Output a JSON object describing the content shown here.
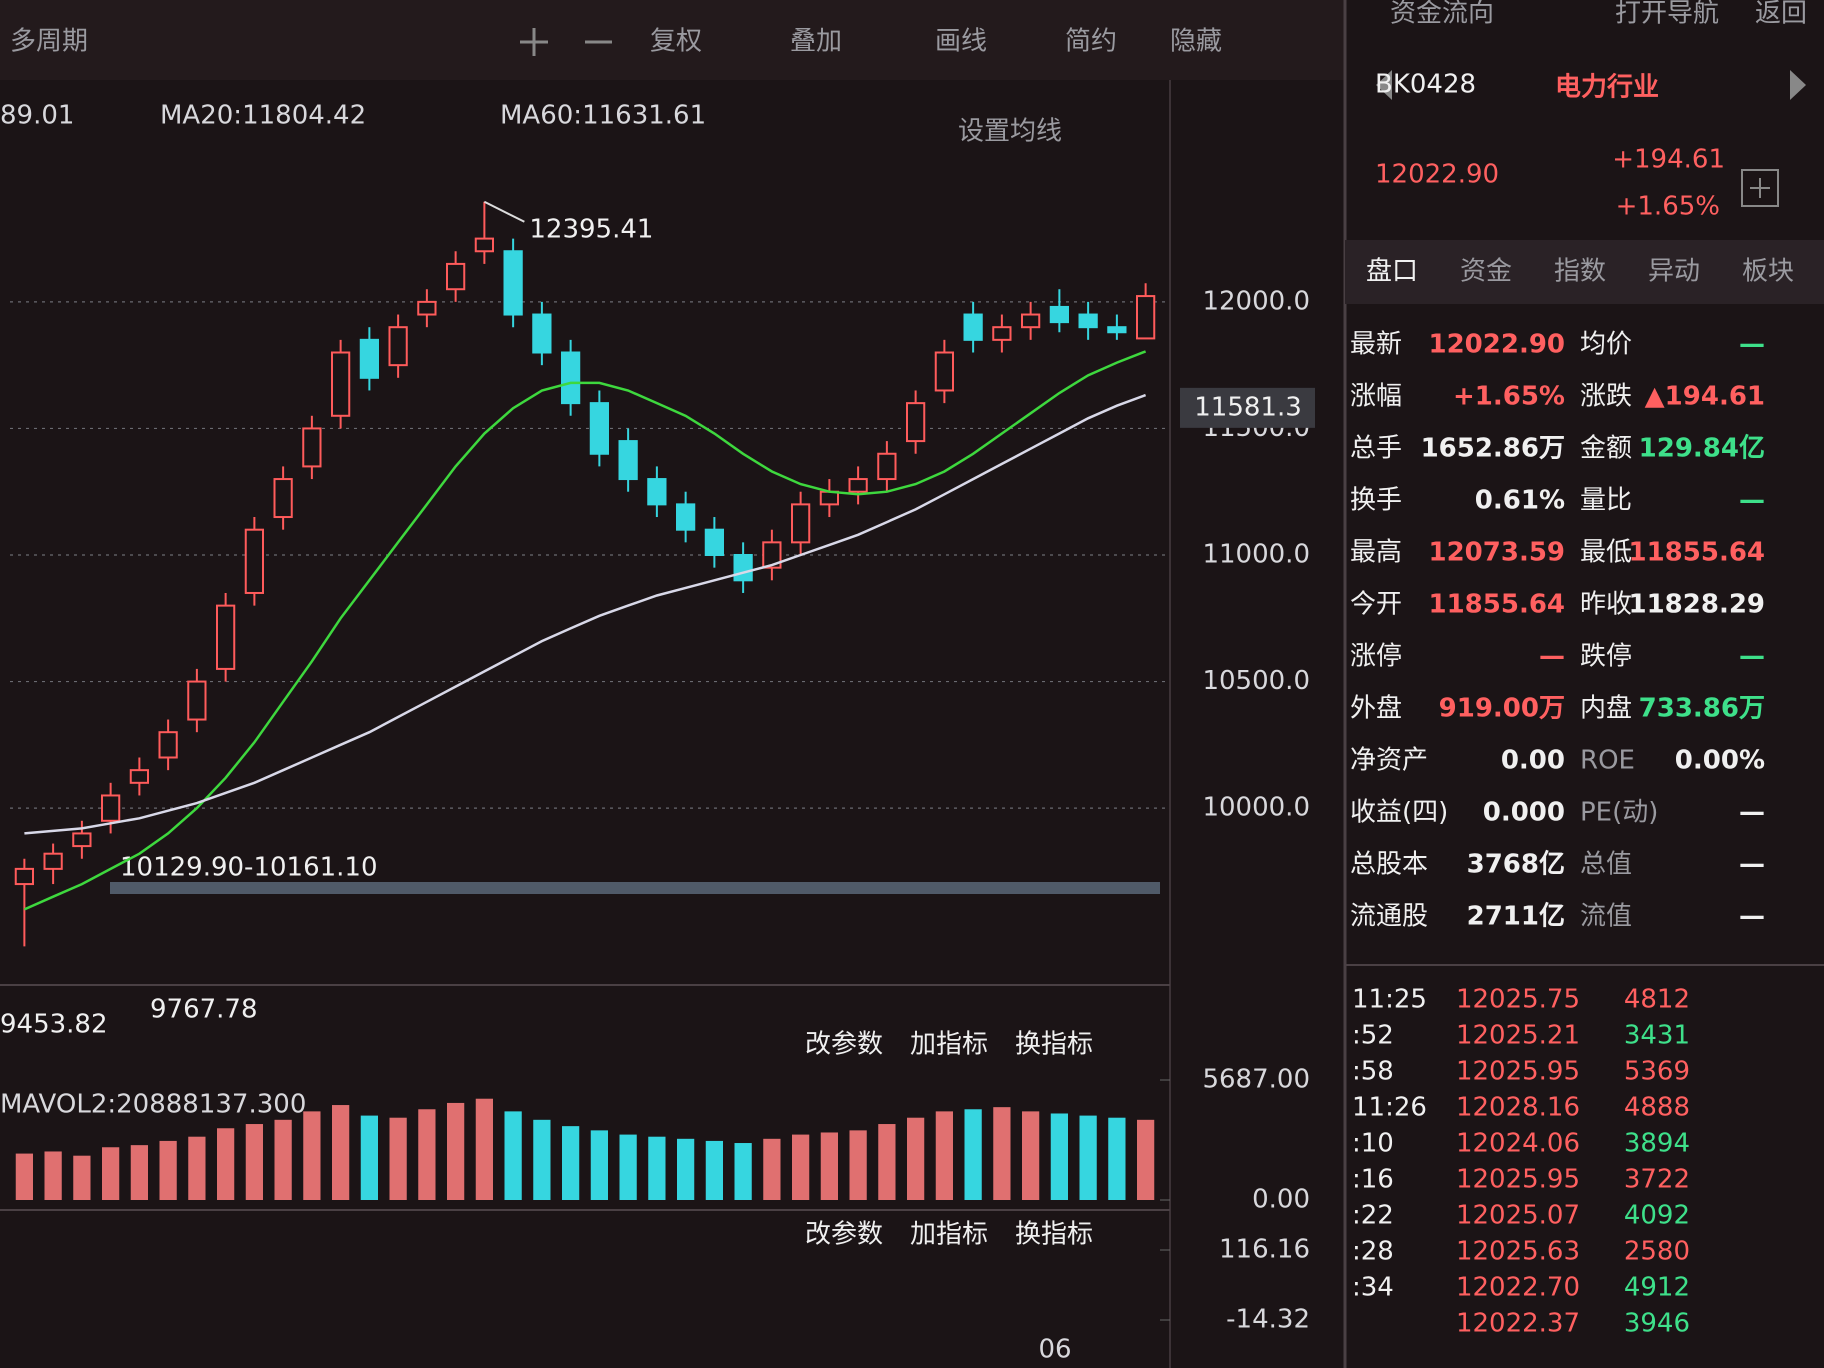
{
  "toolbar": {
    "items": [
      "多周期",
      "复权",
      "叠加",
      "画线",
      "简约",
      "隐藏"
    ],
    "right_items": [
      "资金流向",
      "打开导航",
      "返回"
    ],
    "ma_setting": "设置均线"
  },
  "chart_data": {
    "type": "candlestick",
    "ma_labels": [
      "89.01",
      "MA20:11804.42",
      "MA60:11631.61"
    ],
    "open": [
      9700,
      9760,
      9850,
      9950,
      10100,
      10200,
      10350,
      10550,
      10850,
      11150,
      11350,
      11550,
      11850,
      11750,
      11950,
      12050,
      12200,
      12200,
      11950,
      11800,
      11600,
      11450,
      11300,
      11200,
      11100,
      11000,
      10950,
      11050,
      11200,
      11250,
      11300,
      11450,
      11650,
      11950,
      11850,
      11900,
      11980,
      11950,
      11900,
      11855.64
    ],
    "high": [
      9800,
      9860,
      9950,
      10100,
      10200,
      10350,
      10550,
      10850,
      11150,
      11350,
      11550,
      11850,
      11900,
      11950,
      12050,
      12200,
      12395.41,
      12250,
      12000,
      11850,
      11650,
      11500,
      11350,
      11250,
      11150,
      11050,
      11100,
      11250,
      11300,
      11350,
      11450,
      11650,
      11850,
      12000,
      11950,
      12000,
      12050,
      12000,
      11950,
      12073.59
    ],
    "low": [
      9453.82,
      9700,
      9800,
      9900,
      10050,
      10150,
      10300,
      10500,
      10800,
      11100,
      11300,
      11500,
      11650,
      11700,
      11900,
      12000,
      12150,
      11900,
      11750,
      11550,
      11350,
      11250,
      11150,
      11050,
      10950,
      10850,
      10900,
      11000,
      11150,
      11200,
      11250,
      11400,
      11600,
      11800,
      11800,
      11850,
      11880,
      11850,
      11850,
      11855.64
    ],
    "close": [
      9760,
      9820,
      9900,
      10050,
      10150,
      10300,
      10500,
      10800,
      11100,
      11300,
      11500,
      11800,
      11700,
      11900,
      12000,
      12150,
      12250,
      11950,
      11800,
      11600,
      11400,
      11300,
      11200,
      11100,
      11000,
      10900,
      11050,
      11200,
      11250,
      11300,
      11400,
      11600,
      11800,
      11850,
      11900,
      11950,
      11920,
      11900,
      11880,
      12022.9
    ],
    "up_color": "#ff5b5b",
    "down_color": "#36d6e0",
    "series": [
      {
        "name": "MA20",
        "color": "#3ed83e",
        "values": [
          9600,
          9650,
          9700,
          9760,
          9820,
          9900,
          10000,
          10120,
          10260,
          10420,
          10580,
          10750,
          10900,
          11050,
          11200,
          11350,
          11480,
          11580,
          11650,
          11680,
          11680,
          11650,
          11600,
          11550,
          11480,
          11400,
          11330,
          11280,
          11250,
          11240,
          11250,
          11280,
          11330,
          11400,
          11480,
          11560,
          11640,
          11710,
          11760,
          11804.42
        ]
      },
      {
        "name": "MA60",
        "color": "#d8d8e8",
        "values": [
          9900,
          9910,
          9920,
          9940,
          9960,
          9990,
          10020,
          10060,
          10100,
          10150,
          10200,
          10250,
          10300,
          10360,
          10420,
          10480,
          10540,
          10600,
          10660,
          10710,
          10760,
          10800,
          10840,
          10870,
          10900,
          10930,
          10960,
          11000,
          11040,
          11080,
          11130,
          11180,
          11240,
          11300,
          11360,
          11420,
          11480,
          11540,
          11590,
          11631.61
        ]
      }
    ],
    "ylim": [
      9400,
      12600
    ],
    "yticks": [
      {
        "value": 10000,
        "label": "10000.0"
      },
      {
        "value": 10500,
        "label": "10500.0"
      },
      {
        "value": 11000,
        "label": "11000.0"
      },
      {
        "value": 11500,
        "label": "11500.0"
      },
      {
        "value": 12000,
        "label": "12000.0"
      }
    ],
    "grid": true,
    "current_value": 11581.3,
    "annotations": [
      "10129.90-10161.10",
      "9767.78"
    ],
    "volume": {
      "title": "MAVOL2:20888137.300",
      "values": [
        2200,
        2300,
        2100,
        2500,
        2600,
        2800,
        3000,
        3400,
        3600,
        3800,
        4200,
        4500,
        4000,
        3900,
        4300,
        4600,
        4800,
        4200,
        3800,
        3500,
        3300,
        3100,
        3000,
        2900,
        2800,
        2700,
        2900,
        3100,
        3200,
        3300,
        3600,
        3900,
        4200,
        4300,
        4400,
        4200,
        4100,
        4000,
        3900,
        3800
      ],
      "ylim": [
        0,
        5687
      ],
      "yticks": [
        {
          "value": 5687,
          "label": "5687.00"
        },
        {
          "value": 0,
          "label": "0.00"
        }
      ]
    },
    "indicator": {
      "yticks": [
        {
          "value": 116.16,
          "label": "116.16"
        },
        {
          "value": -14.32,
          "label": "-14.32"
        }
      ],
      "xticks": [
        "06"
      ]
    },
    "panel_buttons": [
      "改参数",
      "加指标",
      "换指标"
    ]
  },
  "quote": {
    "code": "BK0428",
    "name": "电力行业",
    "price": "12022.90",
    "change": "+194.61",
    "change_pct": "+1.65%",
    "tabs": [
      "盘口",
      "资金",
      "指数",
      "异动",
      "板块"
    ],
    "rows": [
      [
        "最新",
        "12022.90",
        "均价",
        "—"
      ],
      [
        "涨幅",
        "+1.65%",
        "涨跌",
        "▲194.61"
      ],
      [
        "总手",
        "1652.86万",
        "金额",
        "129.84亿"
      ],
      [
        "换手",
        "0.61%",
        "量比",
        "—"
      ],
      [
        "最高",
        "12073.59",
        "最低",
        "11855.64"
      ],
      [
        "今开",
        "11855.64",
        "昨收",
        "11828.29"
      ],
      [
        "涨停",
        "—",
        "跌停",
        "—"
      ],
      [
        "外盘",
        "919.00万",
        "内盘",
        "733.86万"
      ],
      [
        "净资产",
        "0.00",
        "ROE",
        "0.00%"
      ],
      [
        "收益(四)",
        "0.000",
        "PE(动)",
        "—"
      ],
      [
        "总股本",
        "3768亿",
        "总值",
        "—"
      ],
      [
        "流通股",
        "2711亿",
        "流值",
        "—"
      ]
    ],
    "ticks": [
      {
        "time": "11:25",
        "price": "12025.75",
        "volume": "4812"
      },
      {
        "time": ":52",
        "price": "12025.21",
        "volume": "3431"
      },
      {
        "time": ":58",
        "price": "12025.95",
        "volume": "5369"
      },
      {
        "time": "11:26",
        "price": "12028.16",
        "volume": "4888"
      },
      {
        "time": ":10",
        "price": "12024.06",
        "volume": "3894"
      },
      {
        "time": ":16",
        "price": "12025.95",
        "volume": "3722"
      },
      {
        "time": ":22",
        "price": "12025.07",
        "volume": "4092"
      },
      {
        "time": ":28",
        "price": "12025.63",
        "volume": "2580"
      },
      {
        "time": ":34",
        "price": "12022.70",
        "volume": "4912"
      },
      {
        "price": "12022.37",
        "volume": "3946"
      }
    ]
  }
}
